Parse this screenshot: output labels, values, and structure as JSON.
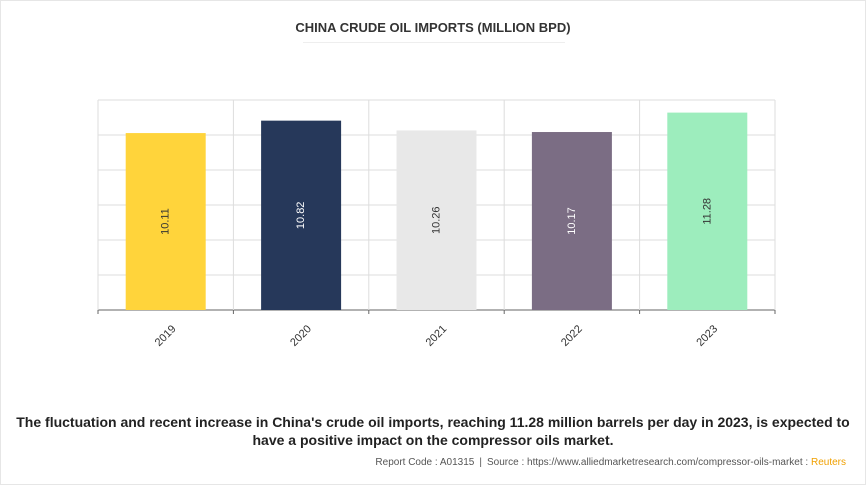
{
  "chart_data": {
    "type": "bar",
    "title": "CHINA CRUDE OIL IMPORTS (MILLION BPD)",
    "categories": [
      "2019",
      "2020",
      "2021",
      "2022",
      "2023"
    ],
    "values": [
      10.11,
      10.82,
      10.26,
      10.17,
      11.28
    ],
    "value_labels": [
      "10.11",
      "10.82",
      "10.26",
      "10.17",
      "11.28"
    ],
    "colors": [
      "#FFD43B",
      "#26385A",
      "#E8E8E8",
      "#7B6D84",
      "#9DEDBD"
    ],
    "label_colors": [
      "#333333",
      "#ffffff",
      "#333333",
      "#ffffff",
      "#333333"
    ],
    "ylim": [
      0,
      12
    ],
    "grid": true,
    "legend": "none"
  },
  "caption": "The fluctuation and recent increase in China's crude oil imports, reaching 11.28 million barrels per day in 2023, is expected to have a positive impact on the compressor oils market.",
  "footer": {
    "report_code": "Report Code : A01315",
    "separator": "|",
    "source": "Source : https://www.alliedmarketresearch.com/compressor-oils-market :",
    "source_name": "Reuters"
  }
}
